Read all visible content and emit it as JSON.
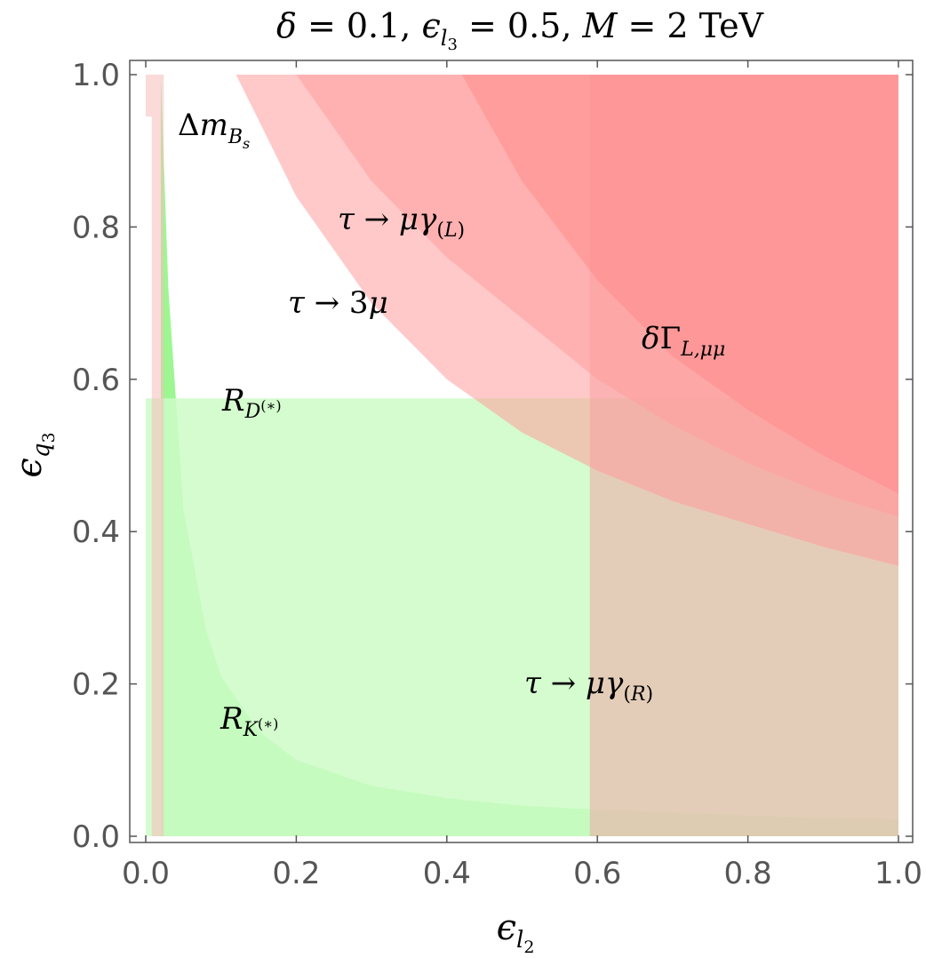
{
  "chart_data": {
    "type": "area",
    "title": "δ = 0.1,  ε_{l3} = 0.5,  M = 2 TeV",
    "xlabel": "ε_{l2}",
    "ylabel": "ε_{q3}",
    "xlim": [
      0.0,
      1.0
    ],
    "ylim": [
      0.0,
      1.0
    ],
    "xticks": [
      "0.0",
      "0.2",
      "0.4",
      "0.6",
      "0.8",
      "1.0"
    ],
    "yticks": [
      "0.0",
      "0.2",
      "0.4",
      "0.6",
      "0.8",
      "1.0"
    ],
    "grid": false,
    "regions": [
      {
        "label": "R_{K(*)}",
        "kind": "allowed",
        "color": "#8cf57f",
        "boundary": {
          "x": [
            0.02,
            0.03,
            0.05,
            0.08,
            0.1,
            0.15,
            0.2,
            0.3,
            0.4,
            0.5,
            0.6,
            0.8,
            1.0
          ],
          "y": [
            1.0,
            0.72,
            0.43,
            0.27,
            0.21,
            0.138,
            0.1,
            0.066,
            0.05,
            0.04,
            0.035,
            0.027,
            0.022
          ]
        }
      },
      {
        "label": "R_{D(*)}",
        "kind": "allowed",
        "color": "#ccfcc6",
        "ymax": 0.575
      },
      {
        "label": "τ → μγ_(R)",
        "kind": "excluded",
        "color": "#f0a5a5",
        "xmin": 0.59
      },
      {
        "label": "Δm_{B_s}",
        "kind": "excluded",
        "color": "#f8bcbc",
        "ymin": 0.945,
        "xmax": 0.024
      },
      {
        "label": "τ → 3μ",
        "kind": "excluded",
        "color": "#ff9c9c",
        "boundary": {
          "x": [
            0.12,
            0.15,
            0.2,
            0.3,
            0.4,
            0.5,
            0.6,
            0.7,
            0.8,
            0.9,
            1.0
          ],
          "y": [
            1.0,
            0.94,
            0.84,
            0.7,
            0.6,
            0.53,
            0.48,
            0.44,
            0.41,
            0.38,
            0.355
          ]
        }
      },
      {
        "label": "τ → μγ_(L)",
        "kind": "excluded",
        "color": "#ff9c9c",
        "boundary": {
          "x": [
            0.2,
            0.25,
            0.3,
            0.4,
            0.5,
            0.6,
            0.7,
            0.8,
            0.9,
            1.0
          ],
          "y": [
            1.0,
            0.93,
            0.86,
            0.76,
            0.68,
            0.6,
            0.54,
            0.49,
            0.45,
            0.42
          ]
        }
      },
      {
        "label": "δΓ_{L,μμ}",
        "kind": "excluded",
        "color": "#ff8c8c",
        "boundary": {
          "x": [
            0.42,
            0.5,
            0.6,
            0.7,
            0.8,
            0.9,
            1.0
          ],
          "y": [
            1.0,
            0.86,
            0.73,
            0.63,
            0.56,
            0.5,
            0.45
          ]
        }
      }
    ],
    "annotations": [
      "Δm_{B_s}",
      "τ → μγ_(L)",
      "τ → 3μ",
      "δΓ_{L,μμ}",
      "R_{D(*)}",
      "τ → μγ_(R)",
      "R_{K(*)}"
    ]
  }
}
